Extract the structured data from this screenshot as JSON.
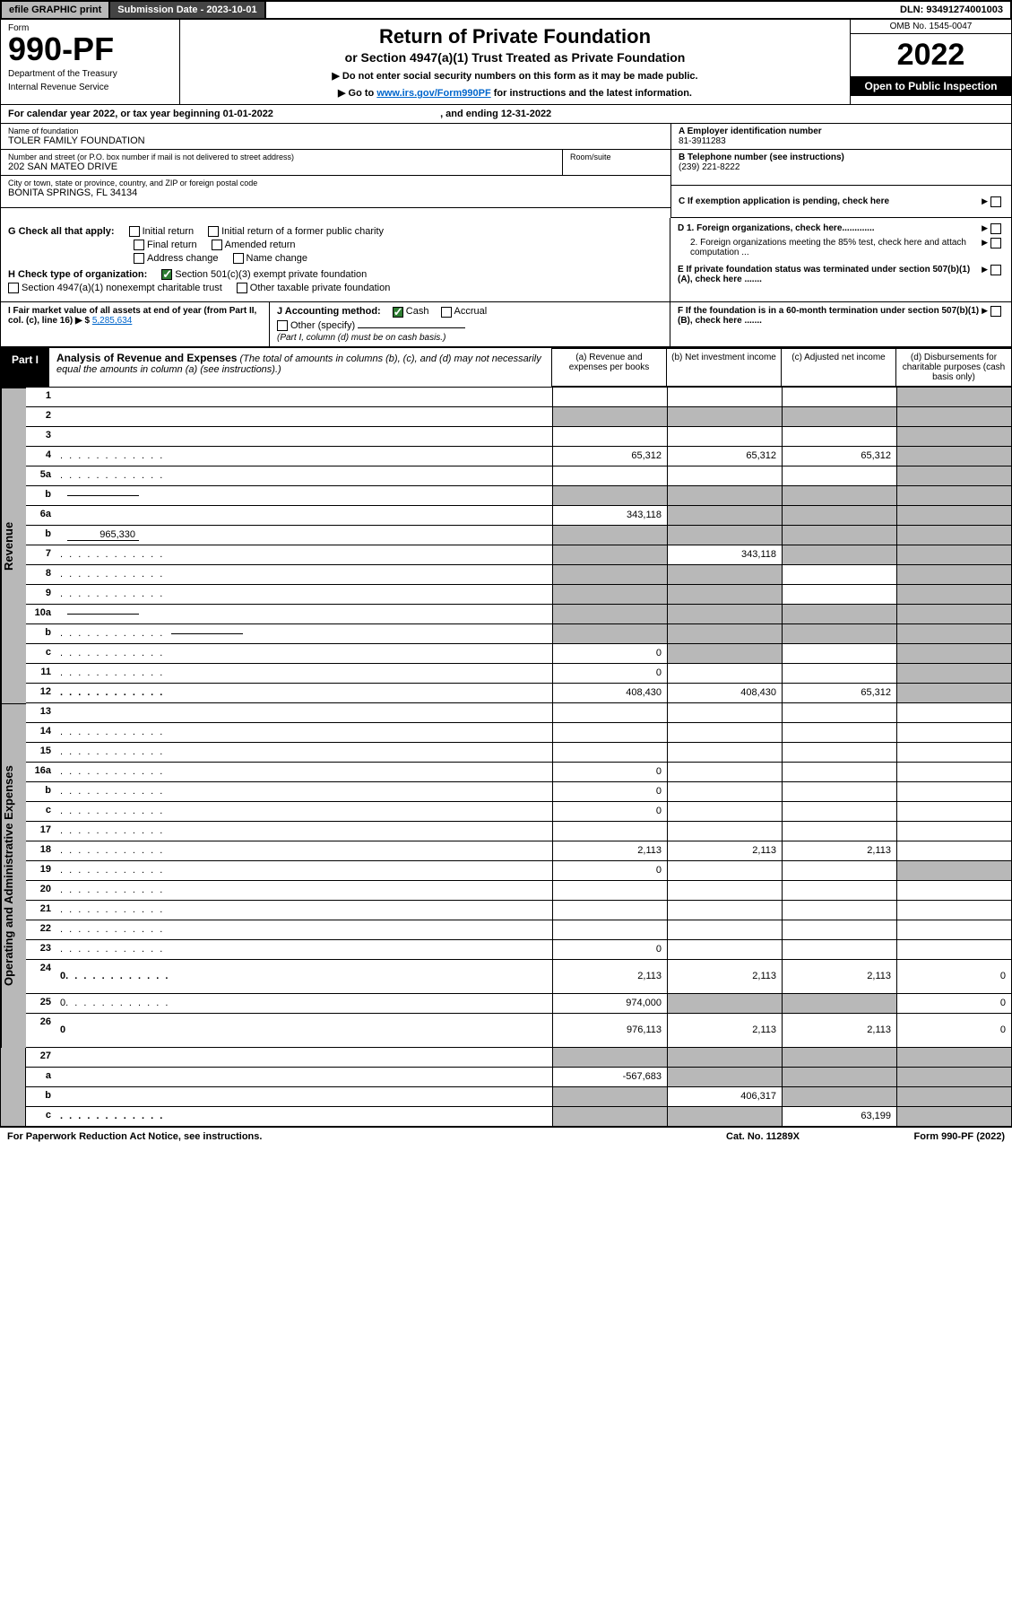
{
  "topbar": {
    "efile": "efile GRAPHIC print",
    "submission_label": "Submission Date - 2023-10-01",
    "dln": "DLN: 93491274001003"
  },
  "header": {
    "form_label": "Form",
    "form_number": "990-PF",
    "dept1": "Department of the Treasury",
    "dept2": "Internal Revenue Service",
    "title": "Return of Private Foundation",
    "subtitle": "or Section 4947(a)(1) Trust Treated as Private Foundation",
    "instr1": "▶ Do not enter social security numbers on this form as it may be made public.",
    "instr2_pre": "▶ Go to ",
    "instr2_link": "www.irs.gov/Form990PF",
    "instr2_post": " for instructions and the latest information.",
    "omb": "OMB No. 1545-0047",
    "year": "2022",
    "open": "Open to Public Inspection"
  },
  "cal_year": {
    "text_pre": "For calendar year 2022, or tax year beginning ",
    "begin": "01-01-2022",
    "text_mid": " , and ending ",
    "end": "12-31-2022"
  },
  "info": {
    "name_label": "Name of foundation",
    "name": "TOLER FAMILY FOUNDATION",
    "addr_label": "Number and street (or P.O. box number if mail is not delivered to street address)",
    "addr": "202 SAN MATEO DRIVE",
    "room_label": "Room/suite",
    "city_label": "City or town, state or province, country, and ZIP or foreign postal code",
    "city": "BONITA SPRINGS, FL  34134",
    "ein_label": "A Employer identification number",
    "ein": "81-3911283",
    "phone_label": "B Telephone number (see instructions)",
    "phone": "(239) 221-8222",
    "c_label": "C If exemption application is pending, check here",
    "d1_label": "D 1. Foreign organizations, check here.............",
    "d2_label": "2. Foreign organizations meeting the 85% test, check here and attach computation ...",
    "e_label": "E If private foundation status was terminated under section 507(b)(1)(A), check here .......",
    "f_label": "F If the foundation is in a 60-month termination under section 507(b)(1)(B), check here ......."
  },
  "g": {
    "label": "G Check all that apply:",
    "opts": [
      "Initial return",
      "Initial return of a former public charity",
      "Final return",
      "Amended return",
      "Address change",
      "Name change"
    ]
  },
  "h": {
    "label": "H Check type of organization:",
    "opt1": "Section 501(c)(3) exempt private foundation",
    "opt2": "Section 4947(a)(1) nonexempt charitable trust",
    "opt3": "Other taxable private foundation"
  },
  "i": {
    "label": "I Fair market value of all assets at end of year (from Part II, col. (c), line 16) ▶ $",
    "value": "5,285,634"
  },
  "j": {
    "label": "J Accounting method:",
    "cash": "Cash",
    "accrual": "Accrual",
    "other": "Other (specify)",
    "note": "(Part I, column (d) must be on cash basis.)"
  },
  "part1": {
    "badge": "Part I",
    "title": "Analysis of Revenue and Expenses",
    "title_note": " (The total of amounts in columns (b), (c), and (d) may not necessarily equal the amounts in column (a) (see instructions).)",
    "col_a": "(a) Revenue and expenses per books",
    "col_b": "(b) Net investment income",
    "col_c": "(c) Adjusted net income",
    "col_d": "(d) Disbursements for charitable purposes (cash basis only)"
  },
  "side_labels": {
    "revenue": "Revenue",
    "expenses": "Operating and Administrative Expenses"
  },
  "rows": [
    {
      "n": "1",
      "d": "",
      "a": "",
      "b": "",
      "c": "",
      "sh": [
        "d"
      ]
    },
    {
      "n": "2",
      "d": "",
      "a": "",
      "b": "",
      "c": "",
      "sh": [
        "a",
        "b",
        "c",
        "d"
      ],
      "nocells": true,
      "bold_not": true
    },
    {
      "n": "3",
      "d": "",
      "a": "",
      "b": "",
      "c": "",
      "sh": [
        "d"
      ]
    },
    {
      "n": "4",
      "d": "",
      "a": "65,312",
      "b": "65,312",
      "c": "65,312",
      "sh": [
        "d"
      ],
      "dots": true
    },
    {
      "n": "5a",
      "d": "",
      "a": "",
      "b": "",
      "c": "",
      "sh": [
        "d"
      ],
      "dots": true
    },
    {
      "n": "b",
      "d": "",
      "a": "",
      "b": "",
      "c": "",
      "sh": [
        "a",
        "b",
        "c",
        "d"
      ],
      "inline": true
    },
    {
      "n": "6a",
      "d": "",
      "a": "343,118",
      "b": "",
      "c": "",
      "sh": [
        "b",
        "c",
        "d"
      ]
    },
    {
      "n": "b",
      "d": "",
      "a": "",
      "b": "",
      "c": "",
      "sh": [
        "a",
        "b",
        "c",
        "d"
      ],
      "inline": true,
      "inline_val": "965,330"
    },
    {
      "n": "7",
      "d": "",
      "a": "",
      "b": "343,118",
      "c": "",
      "sh": [
        "a",
        "c",
        "d"
      ],
      "dots": true
    },
    {
      "n": "8",
      "d": "",
      "a": "",
      "b": "",
      "c": "",
      "sh": [
        "a",
        "b",
        "d"
      ],
      "dots": true
    },
    {
      "n": "9",
      "d": "",
      "a": "",
      "b": "",
      "c": "",
      "sh": [
        "a",
        "b",
        "d"
      ],
      "dots": true
    },
    {
      "n": "10a",
      "d": "",
      "a": "",
      "b": "",
      "c": "",
      "sh": [
        "a",
        "b",
        "c",
        "d"
      ],
      "inline": true
    },
    {
      "n": "b",
      "d": "",
      "a": "",
      "b": "",
      "c": "",
      "sh": [
        "a",
        "b",
        "c",
        "d"
      ],
      "inline": true,
      "dots": true
    },
    {
      "n": "c",
      "d": "",
      "a": "0",
      "b": "",
      "c": "",
      "sh": [
        "b",
        "d"
      ],
      "dots": true
    },
    {
      "n": "11",
      "d": "",
      "a": "0",
      "b": "",
      "c": "",
      "sh": [
        "d"
      ],
      "dots": true
    },
    {
      "n": "12",
      "d": "",
      "a": "408,430",
      "b": "408,430",
      "c": "65,312",
      "sh": [
        "d"
      ],
      "dots": true,
      "bold": true
    }
  ],
  "exp_rows": [
    {
      "n": "13",
      "d": "",
      "a": "",
      "b": "",
      "c": ""
    },
    {
      "n": "14",
      "d": "",
      "a": "",
      "b": "",
      "c": "",
      "dots": true
    },
    {
      "n": "15",
      "d": "",
      "a": "",
      "b": "",
      "c": "",
      "dots": true
    },
    {
      "n": "16a",
      "d": "",
      "a": "0",
      "b": "",
      "c": "",
      "dots": true
    },
    {
      "n": "b",
      "d": "",
      "a": "0",
      "b": "",
      "c": "",
      "dots": true
    },
    {
      "n": "c",
      "d": "",
      "a": "0",
      "b": "",
      "c": "",
      "dots": true
    },
    {
      "n": "17",
      "d": "",
      "a": "",
      "b": "",
      "c": "",
      "dots": true
    },
    {
      "n": "18",
      "d": "",
      "a": "2,113",
      "b": "2,113",
      "c": "2,113",
      "dots": true
    },
    {
      "n": "19",
      "d": "",
      "a": "0",
      "b": "",
      "c": "",
      "sh": [
        "d"
      ],
      "dots": true
    },
    {
      "n": "20",
      "d": "",
      "a": "",
      "b": "",
      "c": "",
      "dots": true
    },
    {
      "n": "21",
      "d": "",
      "a": "",
      "b": "",
      "c": "",
      "dots": true
    },
    {
      "n": "22",
      "d": "",
      "a": "",
      "b": "",
      "c": "",
      "dots": true
    },
    {
      "n": "23",
      "d": "",
      "a": "0",
      "b": "",
      "c": "",
      "dots": true
    },
    {
      "n": "24",
      "d": "0",
      "a": "2,113",
      "b": "2,113",
      "c": "2,113",
      "bold": true,
      "dots": true,
      "tall": true
    },
    {
      "n": "25",
      "d": "0",
      "a": "974,000",
      "b": "",
      "c": "",
      "sh": [
        "b",
        "c"
      ],
      "dots": true
    },
    {
      "n": "26",
      "d": "0",
      "a": "976,113",
      "b": "2,113",
      "c": "2,113",
      "bold": true,
      "tall": true
    }
  ],
  "final_rows": [
    {
      "n": "27",
      "d": "",
      "a": "",
      "b": "",
      "c": "",
      "sh": [
        "a",
        "b",
        "c",
        "d"
      ]
    },
    {
      "n": "a",
      "d": "",
      "a": "-567,683",
      "b": "",
      "c": "",
      "sh": [
        "b",
        "c",
        "d"
      ],
      "bold": true
    },
    {
      "n": "b",
      "d": "",
      "a": "",
      "b": "406,317",
      "c": "",
      "sh": [
        "a",
        "c",
        "d"
      ],
      "bold": true
    },
    {
      "n": "c",
      "d": "",
      "a": "",
      "b": "",
      "c": "63,199",
      "sh": [
        "a",
        "b",
        "d"
      ],
      "bold": true,
      "dots": true
    }
  ],
  "footer": {
    "left": "For Paperwork Reduction Act Notice, see instructions.",
    "mid": "Cat. No. 11289X",
    "right": "Form 990-PF (2022)"
  },
  "colors": {
    "shaded": "#b8b8b8",
    "link": "#0066cc",
    "check": "#2e7d32"
  }
}
